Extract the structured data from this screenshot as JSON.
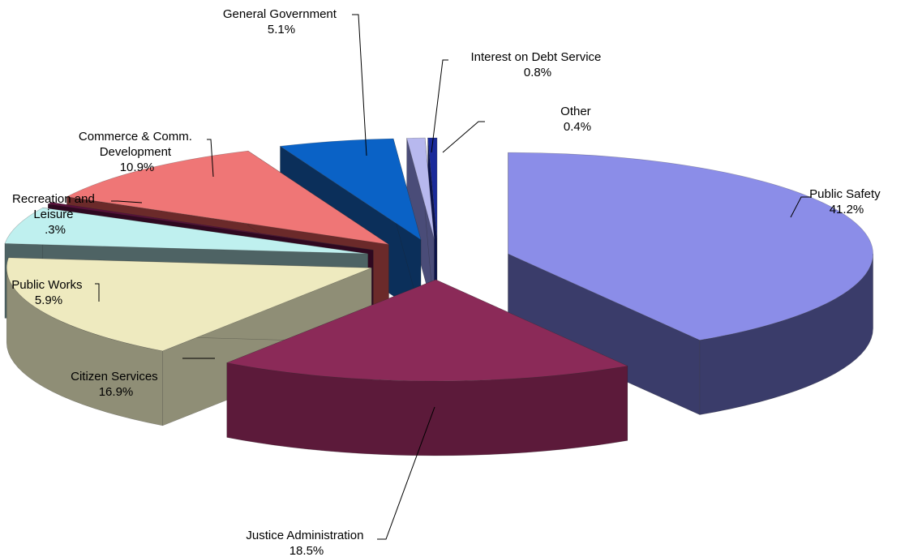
{
  "chart_data": {
    "type": "pie",
    "three_d": true,
    "exploded": true,
    "legend": "none",
    "slices": [
      {
        "label": [
          "Public Safety"
        ],
        "pct_text": "41.2%",
        "value": 41.2,
        "top": "#8b8de8",
        "side": "#3a3c6a"
      },
      {
        "label": [
          "Justice Administration"
        ],
        "pct_text": "18.5%",
        "value": 18.5,
        "top": "#8b2a58",
        "side": "#5c1a3a"
      },
      {
        "label": [
          "Citizen Services"
        ],
        "pct_text": "16.9%",
        "value": 16.9,
        "top": "#eeeabf",
        "side": "#8f8e76"
      },
      {
        "label": [
          "Public Works"
        ],
        "pct_text": "5.9%",
        "value": 5.9,
        "top": "#bff0ef",
        "side": "#4e6364"
      },
      {
        "label": [
          "Recreation and",
          "Leisure"
        ],
        "pct_text": ".3%",
        "value": 0.3,
        "top": "#5a0f3a",
        "side": "#2f0820"
      },
      {
        "label": [
          "Commerce & Comm.",
          "Development"
        ],
        "pct_text": "10.9%",
        "value": 10.9,
        "top": "#ef7676",
        "side": "#6b2a2a"
      },
      {
        "label": [
          "General Government"
        ],
        "pct_text": "5.1%",
        "value": 5.1,
        "top": "#0a62c6",
        "side": "#0b2f5a"
      },
      {
        "label": [
          "Interest on Debt Service"
        ],
        "pct_text": "0.8%",
        "value": 0.8,
        "top": "#b7b8ee",
        "side": "#4a4c78"
      },
      {
        "label": [
          "Other"
        ],
        "pct_text": "0.4%",
        "value": 0.4,
        "top": "#1a2a9a",
        "side": "#0b124a"
      }
    ]
  }
}
